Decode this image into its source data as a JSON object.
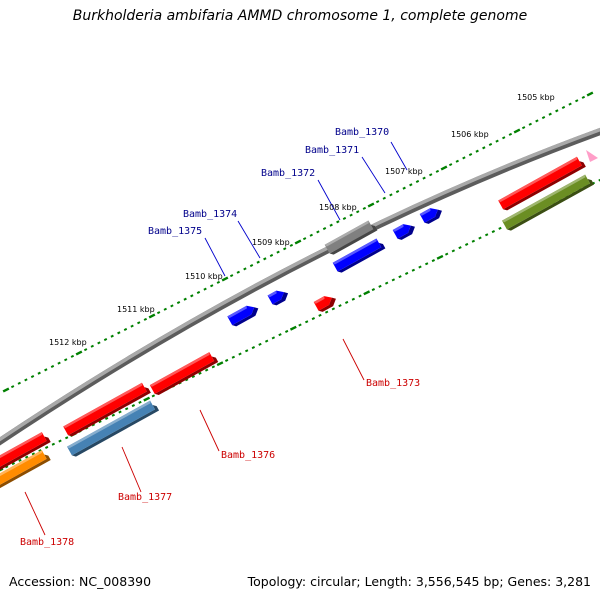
{
  "title": "Burkholderia ambifaria AMMD chromosome 1, complete genome",
  "footer": {
    "accession": "Accession: NC_008390",
    "topology": "Topology: circular; Length: 3,556,545 bp; Genes: 3,281"
  },
  "ticks": [
    "1505 kbp",
    "1506 kbp",
    "1507 kbp",
    "1508 kbp",
    "1509 kbp",
    "1510 kbp",
    "1511 kbp",
    "1512 kbp"
  ],
  "genes_top": [
    "Bamb_1370",
    "Bamb_1371",
    "Bamb_1372",
    "Bamb_1374",
    "Bamb_1375"
  ],
  "genes_bottom": [
    "Bamb_1373",
    "Bamb_1376",
    "Bamb_1377",
    "Bamb_1378"
  ],
  "colors": {
    "backbone": "#808080",
    "forward_cds": "#ff0000",
    "reverse_cds": "#0000ff",
    "gene_gray": "#808080",
    "gene_steelblue": "#4682b4",
    "gene_orange": "#ff8c00",
    "gene_olive": "#6b8e23",
    "tick_green": "#008000",
    "top_label": "#00008b",
    "bottom_label": "#cc0000",
    "marker_pink": "#ff9ec8"
  }
}
